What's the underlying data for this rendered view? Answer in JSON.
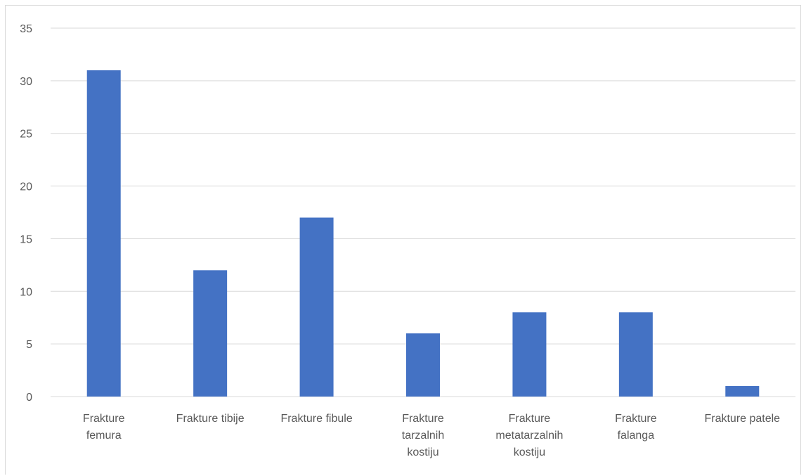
{
  "chart_data": {
    "type": "bar",
    "categories": [
      [
        "Frakture",
        "femura"
      ],
      [
        "Frakture tibije"
      ],
      [
        "Frakture fibule"
      ],
      [
        "Frakture",
        "tarzalnih",
        "kostiju"
      ],
      [
        "Frakture",
        "metatarzalnih",
        "kostiju"
      ],
      [
        "Frakture",
        "falanga"
      ],
      [
        "Frakture patele"
      ]
    ],
    "values": [
      31,
      12,
      17,
      6,
      8,
      8,
      1
    ],
    "yticks": [
      "0",
      "5",
      "10",
      "15",
      "20",
      "25",
      "30",
      "35"
    ],
    "ylim": [
      0,
      35
    ],
    "grid": true,
    "title": "",
    "xlabel": "",
    "ylabel": "",
    "colors": {
      "bar": "#4472c4",
      "grid": "#d9d9d9",
      "text": "#595959"
    }
  }
}
